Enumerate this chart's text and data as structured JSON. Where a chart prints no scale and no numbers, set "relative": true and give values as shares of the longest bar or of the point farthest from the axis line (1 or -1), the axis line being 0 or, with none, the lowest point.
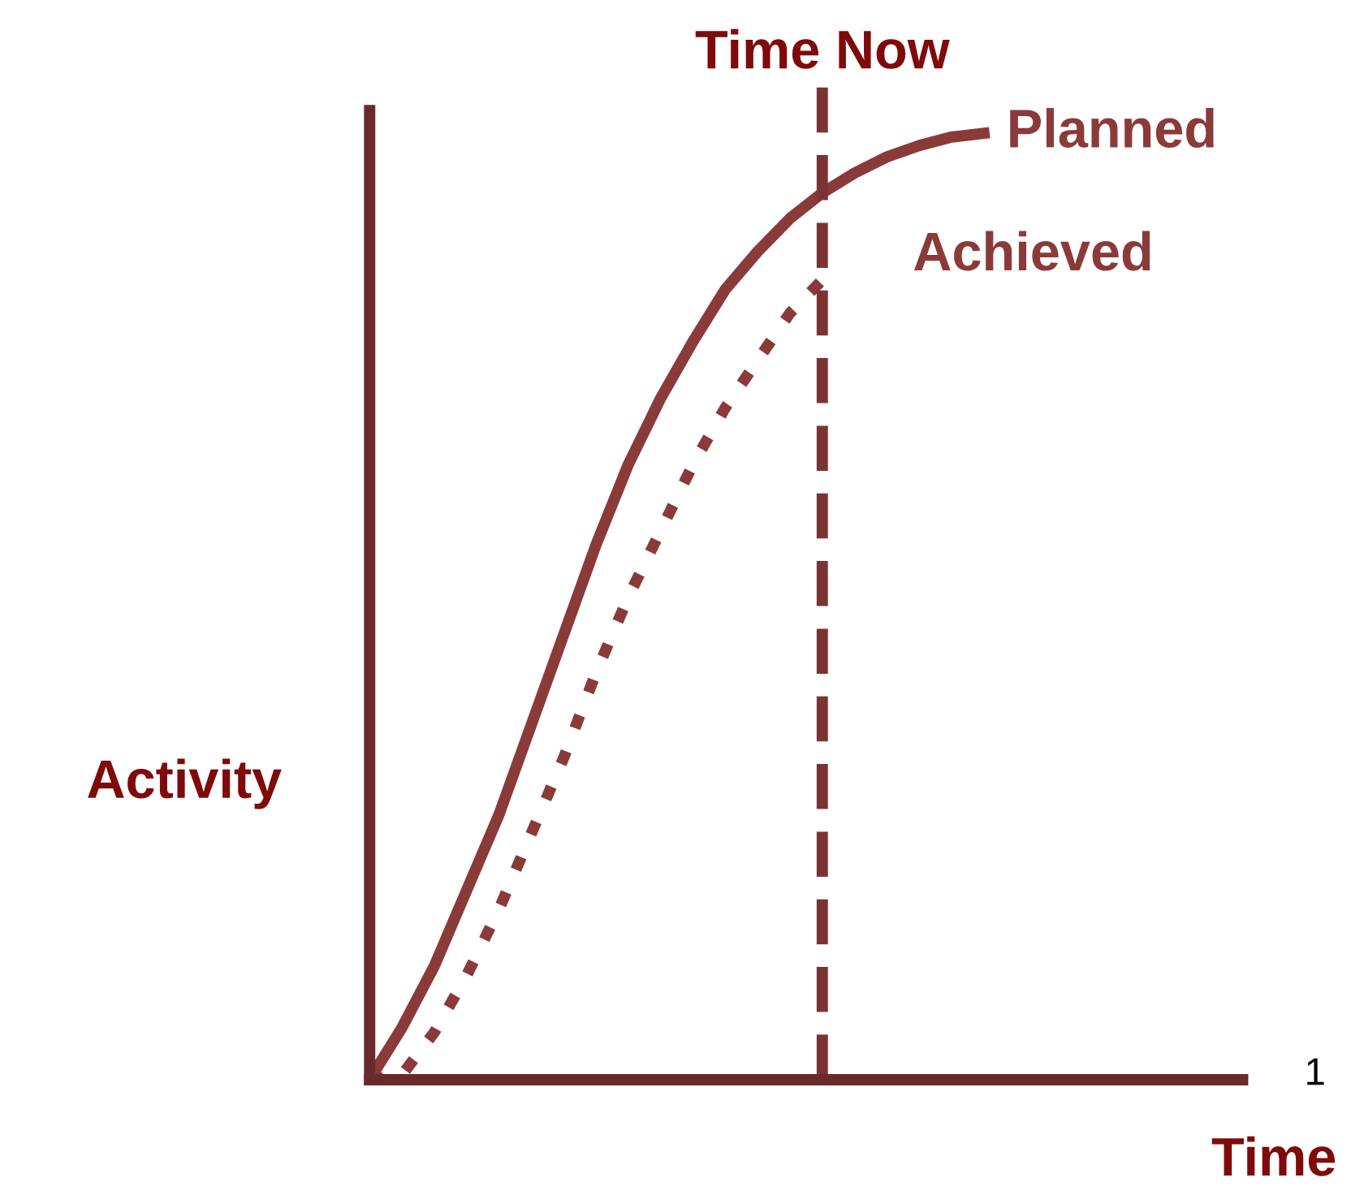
{
  "chart_data": {
    "type": "line",
    "relative": true,
    "xlabel": "Time",
    "ylabel": "Activity",
    "legend": false,
    "marker": "none",
    "annotations": [
      "Time Now",
      "1"
    ],
    "categories": [
      null,
      null,
      null,
      null,
      null,
      null,
      null,
      null,
      null,
      null,
      null,
      null,
      null,
      null,
      null,
      null,
      null,
      null,
      null,
      null,
      null,
      null,
      null,
      null,
      null,
      null,
      null,
      null
    ],
    "series": [
      {
        "name": "Planned",
        "color": "#8b3a3a",
        "line_style": "solid",
        "values": [
          0,
          0.055,
          0.12,
          0.2,
          0.28,
          0.375,
          0.47,
          0.565,
          0.65,
          0.72,
          0.78,
          0.835,
          0.875,
          0.91,
          0.937,
          0.958,
          0.975,
          0.987,
          0.996,
          1.0,
          null,
          null,
          null,
          null,
          null,
          null,
          null,
          null
        ]
      },
      {
        "name": "Achieved",
        "color": "#8b3a3a",
        "line_style": "dotted",
        "values": [
          0,
          0.005,
          0.05,
          0.11,
          0.18,
          0.26,
          0.34,
          0.43,
          0.51,
          0.58,
          0.65,
          0.71,
          0.76,
          0.81,
          0.845,
          null,
          null,
          null,
          null,
          null,
          null,
          null,
          null,
          null,
          null,
          null,
          null,
          null
        ]
      }
    ]
  }
}
